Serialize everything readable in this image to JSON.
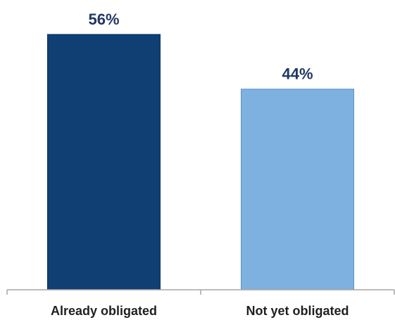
{
  "chart_data": {
    "type": "bar",
    "categories": [
      "Already obligated",
      "Not yet obligated"
    ],
    "values": [
      56,
      44
    ],
    "data_labels": [
      "56%",
      "44%"
    ],
    "colors": [
      "#0f3f73",
      "#7eb1e0"
    ],
    "edge_colors": [
      "#0b2f57",
      "#5b8fc4"
    ],
    "ylim": [
      0,
      60
    ],
    "grid": false,
    "legend": "none",
    "title": "",
    "xlabel": "",
    "ylabel": ""
  }
}
